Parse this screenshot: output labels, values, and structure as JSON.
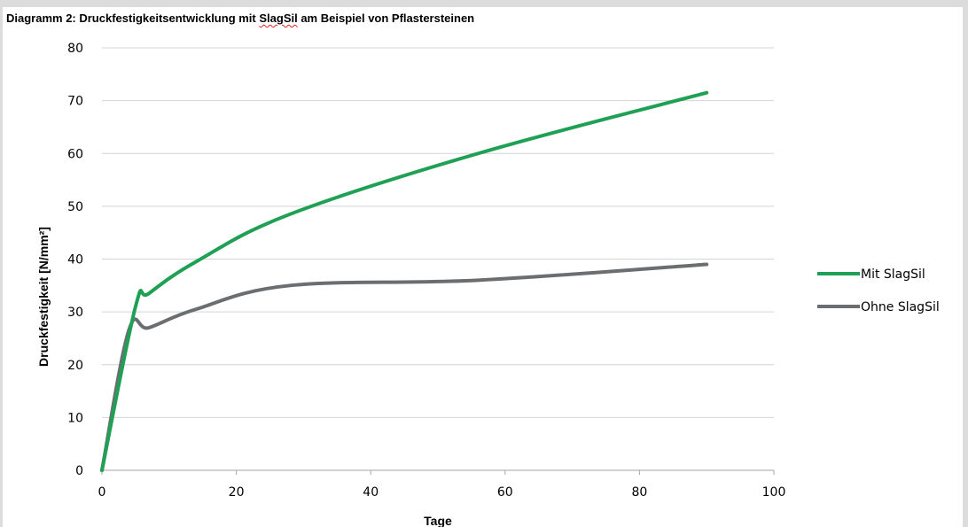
{
  "title": {
    "prefix": "Diagramm 2: Druckfestigkeitsentwicklung mit ",
    "highlighted": "SlagSil",
    "suffix": " am Beispiel von Pflastersteinen"
  },
  "chart_data": {
    "type": "line",
    "title": "Diagramm 2: Druckfestigkeitsentwicklung mit SlagSil am Beispiel von Pflastersteinen",
    "xlabel": "Tage",
    "ylabel": "Druckfestigkeit [N/mm²]",
    "xlim": [
      0,
      100
    ],
    "ylim": [
      0,
      80
    ],
    "x_ticks": [
      0,
      20,
      40,
      60,
      80,
      100
    ],
    "y_ticks": [
      0,
      10,
      20,
      30,
      40,
      50,
      60,
      70,
      80
    ],
    "grid": "horizontal",
    "legend_position": "right",
    "series": [
      {
        "name": "Mit SlagSil",
        "color": "#1fa055",
        "x": [
          0,
          5,
          7,
          14,
          28,
          56,
          90
        ],
        "y": [
          0,
          31,
          33.5,
          39.5,
          48.5,
          60,
          71.5
        ]
      },
      {
        "name": "Ohne SlagSil",
        "color": "#6b6e70",
        "x": [
          0,
          4,
          7,
          14,
          28,
          56,
          90
        ],
        "y": [
          0,
          26.5,
          27,
          30.5,
          35,
          36,
          39
        ]
      }
    ]
  }
}
